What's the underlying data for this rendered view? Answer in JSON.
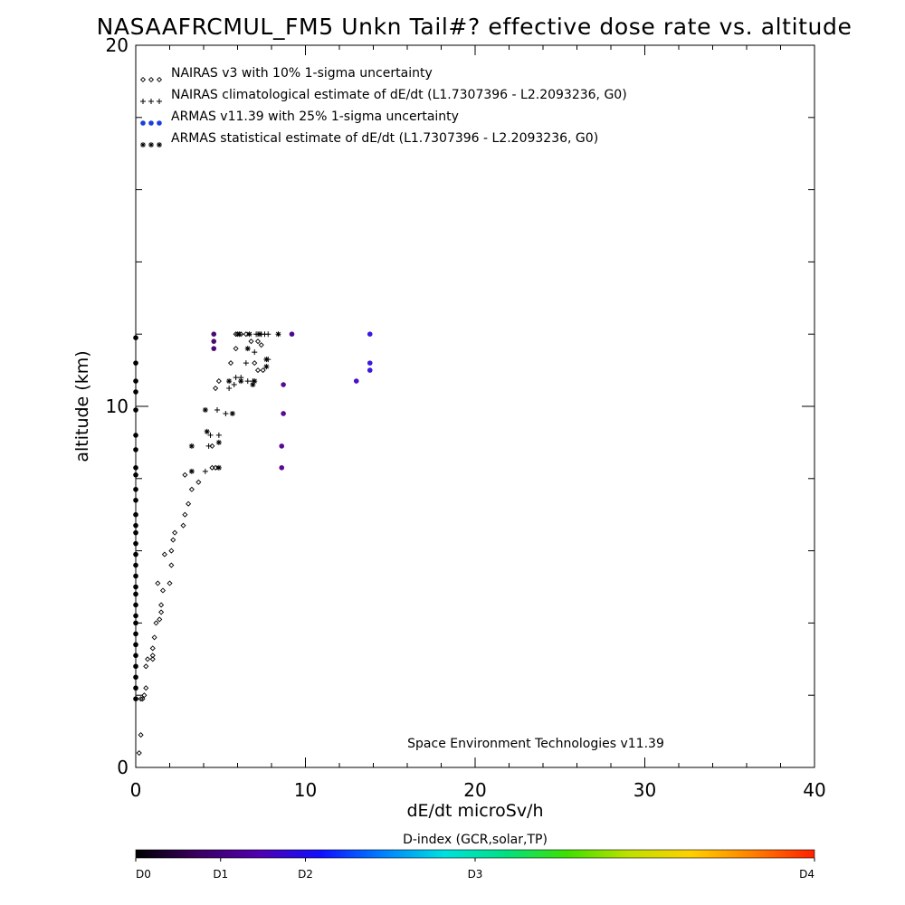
{
  "chart_data": {
    "type": "scatter",
    "title": "NASAAFRCMUL_FM5 Unkn Tail#? effective dose rate vs. altitude",
    "xlabel": "dE/dt microSv/h",
    "ylabel": "altitude (km)",
    "xlim": [
      0,
      40
    ],
    "ylim": [
      0,
      20
    ],
    "x_ticks": [
      "0",
      "10",
      "20",
      "30",
      "40"
    ],
    "y_ticks": [
      "0",
      "10",
      "20"
    ],
    "legend_placement": "top-left",
    "credit": "Space Environment Technologies v11.39",
    "series": [
      {
        "name": "NAIRAS v3 with 10% 1-sigma uncertainty",
        "marker": "diamond",
        "color": "#000000",
        "points": [
          [
            0.2,
            0.4
          ],
          [
            0.3,
            0.9
          ],
          [
            0.3,
            1.9
          ],
          [
            0.4,
            1.9
          ],
          [
            0.5,
            2.0
          ],
          [
            0.6,
            2.2
          ],
          [
            0.6,
            2.8
          ],
          [
            0.7,
            3.0
          ],
          [
            1.0,
            3.0
          ],
          [
            1.0,
            3.1
          ],
          [
            1.0,
            3.3
          ],
          [
            1.1,
            3.6
          ],
          [
            1.2,
            4.0
          ],
          [
            1.4,
            4.1
          ],
          [
            1.5,
            4.3
          ],
          [
            1.5,
            4.5
          ],
          [
            1.6,
            4.9
          ],
          [
            1.3,
            5.1
          ],
          [
            2.0,
            5.1
          ],
          [
            2.1,
            5.6
          ],
          [
            1.7,
            5.9
          ],
          [
            2.1,
            6.0
          ],
          [
            2.2,
            6.3
          ],
          [
            2.3,
            6.5
          ],
          [
            2.8,
            6.7
          ],
          [
            2.9,
            7.0
          ],
          [
            3.1,
            7.3
          ],
          [
            3.3,
            7.7
          ],
          [
            3.7,
            7.9
          ],
          [
            2.9,
            8.1
          ],
          [
            4.5,
            8.3
          ],
          [
            4.7,
            8.3
          ],
          [
            4.5,
            8.9
          ],
          [
            4.7,
            10.5
          ],
          [
            4.9,
            10.7
          ],
          [
            5.6,
            11.2
          ],
          [
            5.9,
            11.6
          ],
          [
            5.9,
            12.0
          ],
          [
            6.0,
            12.0
          ],
          [
            6.2,
            12.0
          ],
          [
            6.5,
            12.0
          ],
          [
            6.8,
            11.8
          ],
          [
            7.2,
            11.8
          ],
          [
            7.4,
            11.7
          ],
          [
            7.0,
            11.2
          ],
          [
            7.2,
            11.0
          ],
          [
            7.5,
            11.0
          ]
        ]
      },
      {
        "name": "NAIRAS climatological estimate of dE/dt (L1.7307396 - L2.2093236, G0)",
        "marker": "plus",
        "color": "#000000",
        "points": [
          [
            4.1,
            8.2
          ],
          [
            4.3,
            8.9
          ],
          [
            4.4,
            9.2
          ],
          [
            4.9,
            9.2
          ],
          [
            4.8,
            9.9
          ],
          [
            5.3,
            9.8
          ],
          [
            5.5,
            10.5
          ],
          [
            5.8,
            10.6
          ],
          [
            5.9,
            10.8
          ],
          [
            6.2,
            10.8
          ],
          [
            6.6,
            10.7
          ],
          [
            6.9,
            10.7
          ],
          [
            6.5,
            11.2
          ],
          [
            7.1,
            12.0
          ],
          [
            7.2,
            12.0
          ],
          [
            7.4,
            12.0
          ],
          [
            7.6,
            12.0
          ],
          [
            7.8,
            12.0
          ],
          [
            7.0,
            11.5
          ],
          [
            7.8,
            11.3
          ]
        ]
      },
      {
        "name": "ARMAS v11.39 with 25% 1-sigma uncertainty",
        "marker": "dot",
        "color": "#1a3fe0",
        "points": [
          [
            4.6,
            12.0
          ],
          [
            4.6,
            11.8
          ],
          [
            4.6,
            11.6
          ],
          [
            9.2,
            12.0
          ],
          [
            13.8,
            12.0
          ],
          [
            13.8,
            11.2
          ],
          [
            13.8,
            11.0
          ],
          [
            13.0,
            10.7
          ],
          [
            8.7,
            10.6
          ],
          [
            8.7,
            9.8
          ],
          [
            8.6,
            8.9
          ],
          [
            8.6,
            8.3
          ],
          [
            0.0,
            11.9
          ],
          [
            0.0,
            11.2
          ],
          [
            0.0,
            10.7
          ],
          [
            0.0,
            10.4
          ],
          [
            0.0,
            9.9
          ],
          [
            0.0,
            9.2
          ],
          [
            0.0,
            8.8
          ],
          [
            0.0,
            8.3
          ],
          [
            0.0,
            8.1
          ],
          [
            0.0,
            7.7
          ],
          [
            0.0,
            7.4
          ],
          [
            0.0,
            7.0
          ],
          [
            0.0,
            6.7
          ],
          [
            0.0,
            6.5
          ],
          [
            0.0,
            6.2
          ],
          [
            0.0,
            5.9
          ],
          [
            0.0,
            5.6
          ],
          [
            0.0,
            5.3
          ],
          [
            0.0,
            5.0
          ],
          [
            0.0,
            4.8
          ],
          [
            0.0,
            4.5
          ],
          [
            0.0,
            4.2
          ],
          [
            0.0,
            4.0
          ],
          [
            0.0,
            3.7
          ],
          [
            0.0,
            3.4
          ],
          [
            0.0,
            3.1
          ],
          [
            0.0,
            2.8
          ],
          [
            0.0,
            2.5
          ],
          [
            0.0,
            2.2
          ],
          [
            0.0,
            1.9
          ]
        ],
        "point_colors": [
          "#4a0a70",
          "#4a0a70",
          "#4a0a70",
          "#4a0a8a",
          "#3a1ae0",
          "#3a1ae0",
          "#3a1ae0",
          "#4a10c8",
          "#5a0a90",
          "#5a0a90",
          "#5a0a90",
          "#5a0a90"
        ]
      },
      {
        "name": "ARMAS statistical estimate of dE/dt (L1.7307396 - L2.2093236, G0)",
        "marker": "asterisk",
        "color": "#000000",
        "points": [
          [
            3.3,
            8.2
          ],
          [
            3.3,
            8.9
          ],
          [
            4.1,
            9.9
          ],
          [
            4.2,
            9.3
          ],
          [
            4.9,
            9.0
          ],
          [
            4.9,
            8.3
          ],
          [
            5.5,
            10.7
          ],
          [
            5.7,
            9.8
          ],
          [
            6.2,
            10.7
          ],
          [
            6.9,
            10.6
          ],
          [
            7.0,
            10.7
          ],
          [
            6.6,
            11.6
          ],
          [
            7.7,
            11.3
          ],
          [
            7.7,
            11.1
          ],
          [
            8.4,
            12.0
          ],
          [
            6.1,
            12.0
          ],
          [
            6.7,
            12.0
          ],
          [
            7.3,
            12.0
          ]
        ]
      }
    ],
    "colorbar": {
      "title": "D-index (GCR,solar,TP)",
      "labels": [
        "D0",
        "D1",
        "D2",
        "D3",
        "D4"
      ],
      "label_positions": [
        0,
        0.125,
        0.25,
        0.5,
        1.0
      ],
      "colors": [
        "#000000",
        "#3a0060",
        "#5000b0",
        "#1010ff",
        "#0080ff",
        "#00e0e0",
        "#00e080",
        "#40e000",
        "#c0e000",
        "#ffd000",
        "#ff8000",
        "#ff2000"
      ]
    }
  }
}
